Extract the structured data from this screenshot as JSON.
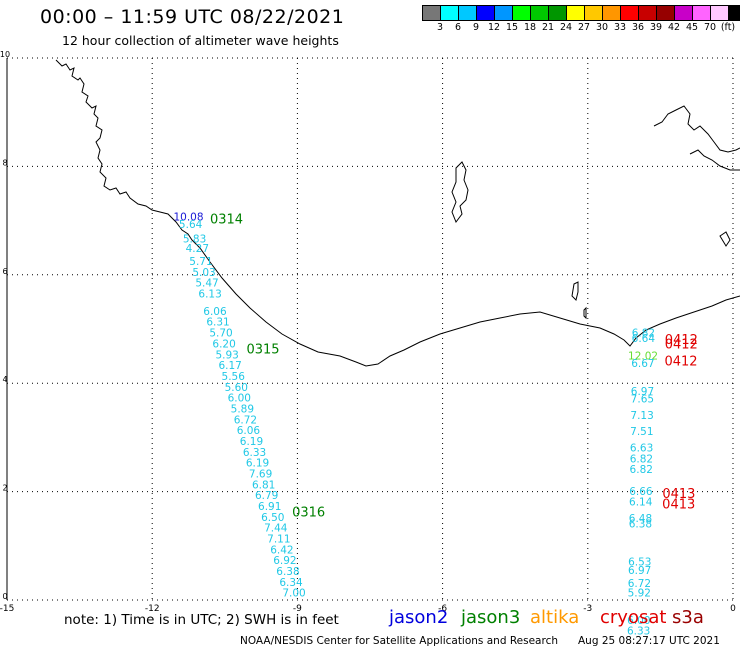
{
  "title": "00:00 – 11:59 UTC 08/22/2021",
  "subtitle": "12 hour collection of altimeter wave heights",
  "legend": {
    "colors": [
      "#777777",
      "#00ffff",
      "#00c8ff",
      "#0000ff",
      "#0096ff",
      "#00ff00",
      "#00c800",
      "#009600",
      "#ffff00",
      "#ffc800",
      "#ff9600",
      "#ff0000",
      "#c80000",
      "#960000",
      "#c800c8",
      "#ff64ff",
      "#ffc8ff",
      "#000000"
    ],
    "labels": [
      "3",
      "6",
      "9",
      "12",
      "15",
      "18",
      "21",
      "24",
      "27",
      "30",
      "33",
      "36",
      "39",
      "42",
      "45",
      "70",
      "(ft)"
    ]
  },
  "axes": {
    "x_ticks": [
      "-15",
      "-12",
      "-9",
      "-6",
      "-3",
      "0"
    ],
    "y_ticks": [
      "0",
      "2",
      "4",
      "6",
      "8",
      "10"
    ],
    "xlim": [
      -15,
      0
    ],
    "ylim": [
      0,
      10
    ]
  },
  "passes": [
    {
      "name": "west-track",
      "color": "#20c8e6",
      "points": [
        {
          "lat": 7.0,
          "v": "10.08",
          "c": "#1a1ad6"
        },
        {
          "lat": 6.86,
          "v": "5.64"
        },
        {
          "lat": 6.6,
          "v": "5.83"
        },
        {
          "lat": 6.42,
          "v": "4.27"
        },
        {
          "lat": 6.18,
          "v": "5.71"
        },
        {
          "lat": 5.98,
          "v": "5.03"
        },
        {
          "lat": 5.78,
          "v": "5.47"
        },
        {
          "lat": 5.58,
          "v": "6.13"
        },
        {
          "lat": 5.26,
          "v": "6.06"
        },
        {
          "lat": 5.06,
          "v": "6.31"
        },
        {
          "lat": 4.86,
          "v": "5.70"
        },
        {
          "lat": 4.66,
          "v": "6.20"
        },
        {
          "lat": 4.46,
          "v": "5.93"
        },
        {
          "lat": 4.26,
          "v": "6.17"
        },
        {
          "lat": 4.06,
          "v": "5.56"
        },
        {
          "lat": 3.86,
          "v": "5.60"
        },
        {
          "lat": 3.66,
          "v": "6.00"
        },
        {
          "lat": 3.46,
          "v": "5.89"
        },
        {
          "lat": 3.26,
          "v": "6.72"
        },
        {
          "lat": 3.06,
          "v": "6.06"
        },
        {
          "lat": 2.86,
          "v": "6.19"
        },
        {
          "lat": 2.66,
          "v": "6.33"
        },
        {
          "lat": 2.46,
          "v": "6.19"
        },
        {
          "lat": 2.26,
          "v": "7.69"
        },
        {
          "lat": 2.06,
          "v": "6.81"
        },
        {
          "lat": 1.86,
          "v": "6.79"
        },
        {
          "lat": 1.66,
          "v": "6.91"
        },
        {
          "lat": 1.46,
          "v": "6.50"
        },
        {
          "lat": 1.26,
          "v": "7.44"
        },
        {
          "lat": 1.06,
          "v": "7.11"
        },
        {
          "lat": 0.86,
          "v": "6.42"
        },
        {
          "lat": 0.66,
          "v": "6.92"
        },
        {
          "lat": 0.46,
          "v": "6.38"
        },
        {
          "lat": 0.26,
          "v": "6.34"
        },
        {
          "lat": 0.06,
          "v": "7.00"
        }
      ],
      "time_labels": [
        {
          "lat": 7.0,
          "text": "0314",
          "color": "#008000"
        },
        {
          "lat": 4.6,
          "text": "0315",
          "color": "#008000"
        },
        {
          "lat": 1.6,
          "text": "0316",
          "color": "#008000"
        }
      ]
    },
    {
      "name": "east-track",
      "color": "#20c8e6",
      "points": [
        {
          "lat": 4.86,
          "v": "6.82"
        },
        {
          "lat": 4.76,
          "v": "6.64"
        },
        {
          "lat": 4.44,
          "v": "12.02",
          "c": "#66dd33"
        },
        {
          "lat": 4.3,
          "v": "6.67"
        },
        {
          "lat": 3.78,
          "v": "6.97"
        },
        {
          "lat": 3.64,
          "v": "7.65"
        },
        {
          "lat": 3.34,
          "v": "7.13"
        },
        {
          "lat": 3.04,
          "v": "7.51"
        },
        {
          "lat": 2.74,
          "v": "6.63"
        },
        {
          "lat": 2.54,
          "v": "6.82"
        },
        {
          "lat": 2.34,
          "v": "6.82"
        },
        {
          "lat": 1.94,
          "v": "6.66"
        },
        {
          "lat": 1.74,
          "v": "6.14"
        },
        {
          "lat": 1.44,
          "v": "6.48"
        },
        {
          "lat": 1.34,
          "v": "6.38"
        },
        {
          "lat": 0.64,
          "v": "6.53"
        },
        {
          "lat": 0.48,
          "v": "6.97"
        },
        {
          "lat": 0.24,
          "v": "6.72"
        },
        {
          "lat": 0.06,
          "v": "5.92"
        },
        {
          "lat": -0.44,
          "v": "6.00"
        },
        {
          "lat": -0.64,
          "v": "6.33"
        }
      ],
      "time_labels": [
        {
          "lat": 4.78,
          "text": "0412",
          "color": "#e00000"
        },
        {
          "lat": 4.7,
          "text": "0412",
          "color": "#e00000"
        },
        {
          "lat": 4.38,
          "text": "0412",
          "color": "#e00000"
        },
        {
          "lat": 1.94,
          "text": "0413",
          "color": "#e00000"
        },
        {
          "lat": 1.74,
          "text": "0413",
          "color": "#e00000"
        }
      ]
    }
  ],
  "footer": {
    "note": "note:  1) Time is in UTC;  2) SWH is in feet",
    "satellites": [
      {
        "name": "jason2",
        "color": "#0000dd"
      },
      {
        "name": "jason3",
        "color": "#008000"
      },
      {
        "name": "altika",
        "color": "#ff9900"
      },
      {
        "name": "cryosat",
        "color": "#e00000"
      },
      {
        "name": "s3a",
        "color": "#990000"
      }
    ],
    "credit": "NOAA/NESDIS Center for Satellite Applications and Research",
    "timestamp": "Aug 25 08:27:17 UTC 2021"
  }
}
